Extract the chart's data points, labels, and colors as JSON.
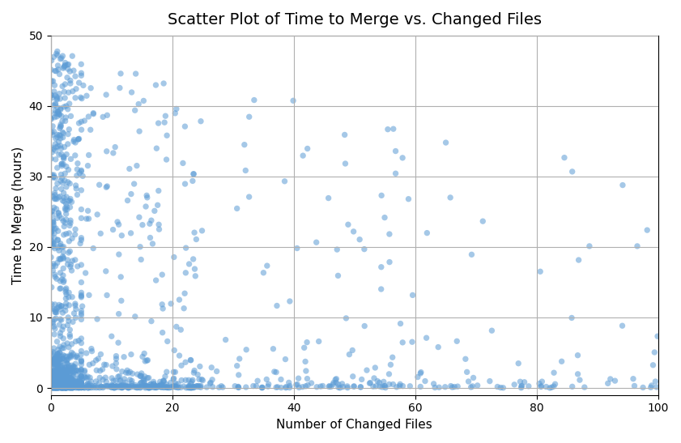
{
  "title": "Scatter Plot of Time to Merge vs. Changed Files",
  "xlabel": "Number of Changed Files",
  "ylabel": "Time to Merge (hours)",
  "xlim": [
    0,
    100
  ],
  "ylim": [
    -1,
    50
  ],
  "yticks": [
    0,
    10,
    20,
    30,
    40,
    50
  ],
  "xticks": [
    0,
    20,
    40,
    60,
    80,
    100
  ],
  "dot_color": "#5b9bd5",
  "dot_alpha": 0.55,
  "dot_size": 28,
  "background_color": "#ffffff",
  "grid_color": "#b0b0b0",
  "title_fontsize": 14,
  "label_fontsize": 11,
  "seed": 99
}
